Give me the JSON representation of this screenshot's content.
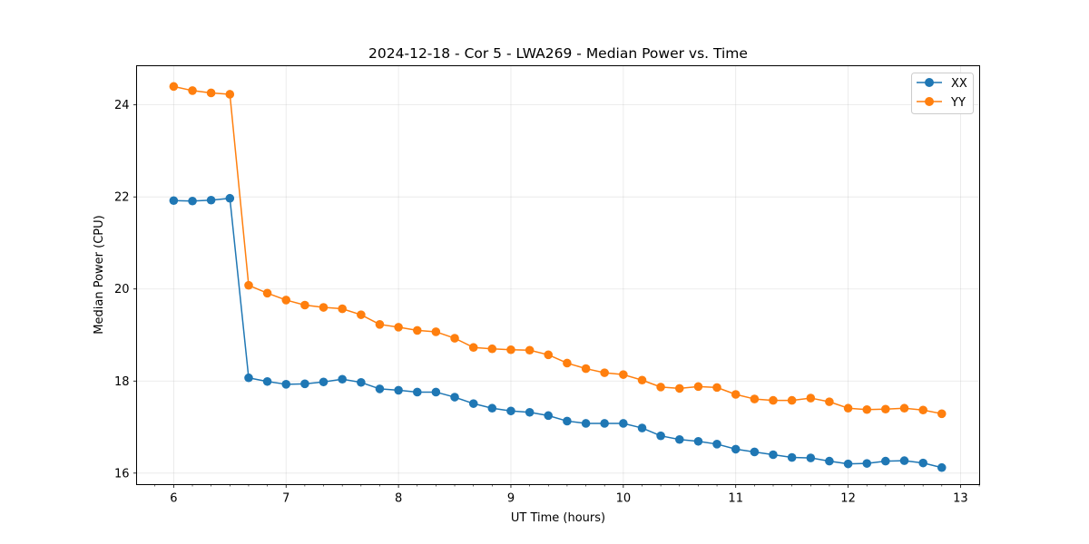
{
  "chart_data": {
    "type": "line",
    "title": "2024-12-18 - Cor 5 - LWA269 - Median Power vs. Time",
    "xlabel": "UT Time (hours)",
    "ylabel": "Median Power (CPU)",
    "xlim": [
      5.67,
      13.17
    ],
    "ylim": [
      15.75,
      24.85
    ],
    "xticks": [
      6,
      7,
      8,
      9,
      10,
      11,
      12,
      13
    ],
    "yticks": [
      16,
      18,
      20,
      22,
      24
    ],
    "grid": true,
    "legend_position": "top-right",
    "x": [
      6.0,
      6.167,
      6.333,
      6.5,
      6.667,
      6.833,
      7.0,
      7.167,
      7.333,
      7.5,
      7.667,
      7.833,
      8.0,
      8.167,
      8.333,
      8.5,
      8.667,
      8.833,
      9.0,
      9.167,
      9.333,
      9.5,
      9.667,
      9.833,
      10.0,
      10.167,
      10.333,
      10.5,
      10.667,
      10.833,
      11.0,
      11.167,
      11.333,
      11.5,
      11.667,
      11.833,
      12.0,
      12.167,
      12.333,
      12.5,
      12.667,
      12.833
    ],
    "series": [
      {
        "name": "XX",
        "color": "#1f77b4",
        "values": [
          21.92,
          21.91,
          21.93,
          21.97,
          18.07,
          17.99,
          17.93,
          17.94,
          17.98,
          18.04,
          17.97,
          17.83,
          17.8,
          17.76,
          17.76,
          17.65,
          17.51,
          17.41,
          17.35,
          17.32,
          17.25,
          17.13,
          17.08,
          17.08,
          17.08,
          16.98,
          16.81,
          16.73,
          16.69,
          16.63,
          16.52,
          16.46,
          16.4,
          16.34,
          16.33,
          16.26,
          16.2,
          16.21,
          16.26,
          16.27,
          16.22,
          16.12
        ]
      },
      {
        "name": "YY",
        "color": "#ff7f0e",
        "values": [
          24.4,
          24.31,
          24.26,
          24.23,
          20.08,
          19.91,
          19.76,
          19.65,
          19.6,
          19.57,
          19.44,
          19.23,
          19.17,
          19.1,
          19.07,
          18.93,
          18.73,
          18.7,
          18.68,
          18.67,
          18.57,
          18.39,
          18.27,
          18.18,
          18.14,
          18.02,
          17.87,
          17.84,
          17.88,
          17.86,
          17.71,
          17.61,
          17.58,
          17.58,
          17.63,
          17.55,
          17.41,
          17.38,
          17.39,
          17.41,
          17.37,
          17.29
        ]
      }
    ]
  }
}
